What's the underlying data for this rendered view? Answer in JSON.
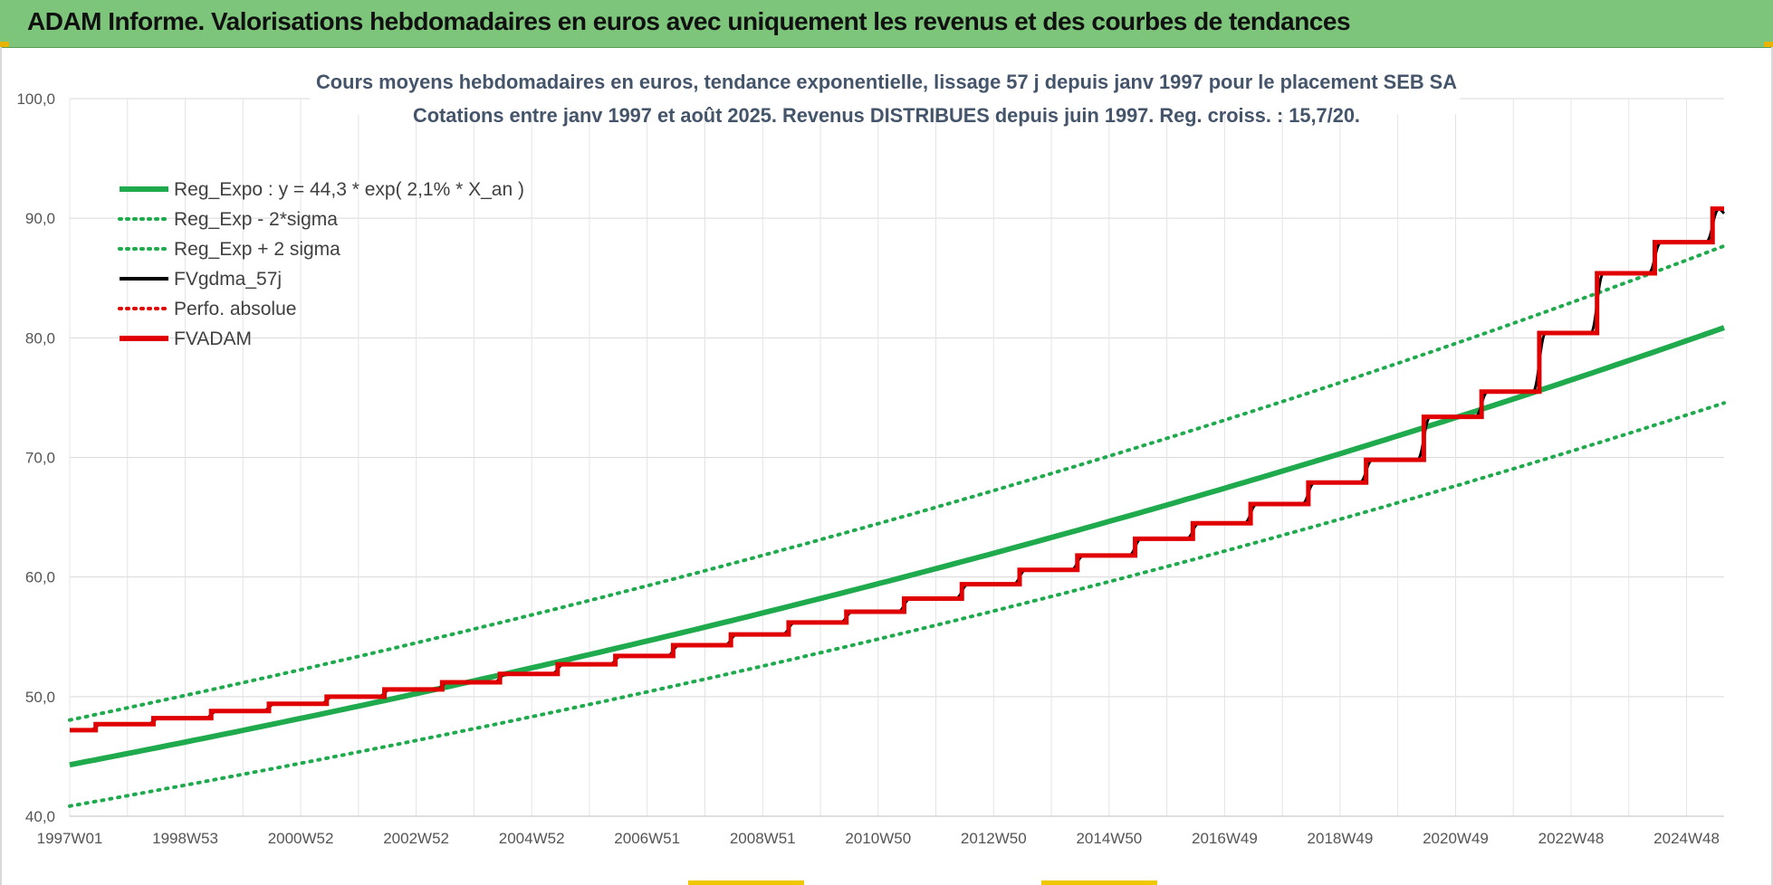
{
  "banner": {
    "title": "ADAM Informe. Valorisations hebdomadaires en euros avec uniquement les revenus et des courbes de tendances",
    "color": "#7cc57a"
  },
  "chart_data": {
    "type": "line",
    "title": "Cours moyens hebdomadaires en euros, tendance exponentielle, lissage 57 j depuis janv 1997 pour le placement SEB SA",
    "subtitle": "Cotations entre janv 1997 et août 2025.  Revenus DISTRIBUES depuis juin 1997.  Reg. croiss. : 15,7/20.",
    "xlabel": "",
    "ylabel": "",
    "x_range": [
      "1997W01",
      "2025W35"
    ],
    "ylim": [
      40,
      100
    ],
    "y_ticks": [
      "40,0",
      "50,0",
      "60,0",
      "70,0",
      "80,0",
      "90,0",
      "100,0"
    ],
    "x_ticks": [
      "1997W01",
      "1998W53",
      "2000W52",
      "2002W52",
      "2004W52",
      "2006W51",
      "2008W51",
      "2010W50",
      "2012W50",
      "2014W50",
      "2016W49",
      "2018W49",
      "2020W49",
      "2022W48",
      "2024W48"
    ],
    "grid": true,
    "legend_position": "top-left",
    "regression": {
      "a": 44.3,
      "rate": 0.021,
      "sigma_factor": 1.0845
    },
    "series": [
      {
        "name": "Reg_Expo : y = 44,3 * exp( 2,1% *  X_an )",
        "color": "#1faa4e",
        "style": "solid-thick",
        "x": [
          1997.0,
          2000.0,
          2005.0,
          2010.0,
          2015.0,
          2020.0,
          2025.65
        ],
        "values": [
          44.3,
          47.2,
          52.6,
          58.3,
          64.8,
          71.9,
          80.7
        ]
      },
      {
        "name": "Reg_Exp - 2*sigma",
        "color": "#1faa4e",
        "style": "dotted",
        "x": [
          1997.0,
          2000.0,
          2005.0,
          2010.0,
          2015.0,
          2020.0,
          2025.65
        ],
        "values": [
          40.8,
          43.5,
          48.5,
          53.8,
          59.7,
          66.3,
          74.4
        ]
      },
      {
        "name": "Reg_Exp + 2 sigma",
        "color": "#1faa4e",
        "style": "dotted",
        "x": [
          1997.0,
          2000.0,
          2005.0,
          2010.0,
          2015.0,
          2020.0,
          2025.65
        ],
        "values": [
          48.2,
          51.2,
          57.0,
          63.2,
          70.3,
          78.0,
          87.6
        ]
      },
      {
        "name": "FVgdma_57j",
        "color": "#000000",
        "style": "solid"
      },
      {
        "name": "Perfo. absolue",
        "color": "#e00000",
        "style": "dotted"
      },
      {
        "name": "FVADAM",
        "color": "#e00000",
        "style": "step",
        "x": [
          1997.0,
          1997.45,
          1998.45,
          1999.45,
          2000.45,
          2001.45,
          2002.45,
          2003.45,
          2004.45,
          2005.45,
          2006.45,
          2007.45,
          2008.45,
          2009.45,
          2010.45,
          2011.45,
          2012.45,
          2013.45,
          2014.45,
          2015.45,
          2016.45,
          2017.45,
          2018.45,
          2019.45,
          2020.45,
          2021.45,
          2022.45,
          2023.45,
          2024.45,
          2025.45
        ],
        "values": [
          47.2,
          47.7,
          48.2,
          48.8,
          49.4,
          50.0,
          50.6,
          51.2,
          51.9,
          52.7,
          53.4,
          54.3,
          55.2,
          56.2,
          57.1,
          58.2,
          59.4,
          60.6,
          61.8,
          63.2,
          64.5,
          66.1,
          67.9,
          69.8,
          73.4,
          75.5,
          80.4,
          85.4,
          88.0,
          90.8
        ]
      }
    ]
  }
}
